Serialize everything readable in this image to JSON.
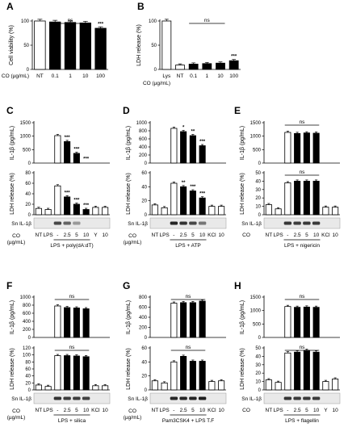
{
  "chart_data": [
    {
      "panel": "A",
      "type": "bar",
      "ylabel": "Cell viability (%)",
      "ylim": [
        0,
        100
      ],
      "yticks": [
        0,
        50,
        100
      ],
      "xaxis_label": "CO (µg/mL)",
      "categories": [
        "NT",
        "0.1",
        "1",
        "10",
        "100"
      ],
      "values": [
        100,
        98,
        97,
        96,
        85
      ],
      "stars": [
        "",
        "",
        "",
        "",
        "***"
      ],
      "ns_bracket": {
        "label": "ns",
        "from": 1,
        "to": 3
      }
    },
    {
      "panel": "B",
      "type": "bar",
      "ylabel": "LDH release (%)",
      "ylim": [
        0,
        100
      ],
      "yticks": [
        0,
        50,
        100
      ],
      "xaxis_label": "CO (µg/mL)",
      "categories": [
        "Lys",
        "NT",
        "0.1",
        "1",
        "10",
        "100"
      ],
      "values": [
        100,
        9,
        11,
        12,
        13,
        18
      ],
      "stars": [
        "",
        "",
        "",
        "",
        "",
        "***"
      ],
      "ns_bracket": {
        "label": "ns",
        "from": 2,
        "to": 4
      }
    },
    {
      "panel": "C",
      "top": {
        "type": "bar",
        "ylabel": "IL-1β (pg/mL)",
        "ylim": [
          0,
          1500
        ],
        "yticks": [
          0,
          500,
          1000,
          1500
        ],
        "values": [
          0,
          0,
          1020,
          800,
          360,
          0,
          0,
          0
        ],
        "stars": [
          "",
          "",
          "",
          "***",
          "***",
          "***",
          "",
          ""
        ]
      },
      "bottom": {
        "type": "bar",
        "ylabel": "LDH release (%)",
        "ylim": [
          0,
          80
        ],
        "yticks": [
          0,
          20,
          40,
          60,
          80
        ],
        "values": [
          12,
          10,
          55,
          34,
          20,
          10,
          14,
          14
        ],
        "stars": [
          "",
          "",
          "",
          "***",
          "***",
          "***",
          "",
          ""
        ]
      },
      "blot_label": "Sn IL-1β",
      "co_row": [
        "NT",
        "LPS",
        "-",
        "2.5",
        "5",
        "10",
        "Y",
        "10"
      ],
      "treatment": "LPS + poly(dA:dT)",
      "co_unit": [
        "CO",
        "(µg/mL)"
      ]
    },
    {
      "panel": "D",
      "top": {
        "type": "bar",
        "ylabel": "IL-1β (pg/mL)",
        "ylim": [
          0,
          1000
        ],
        "yticks": [
          0,
          200,
          400,
          600,
          800,
          1000
        ],
        "values": [
          0,
          0,
          860,
          780,
          680,
          430,
          0,
          0
        ],
        "stars": [
          "",
          "",
          "",
          "*",
          "**",
          "***",
          "",
          ""
        ]
      },
      "bottom": {
        "type": "bar",
        "ylabel": "LDH release (%)",
        "ylim": [
          0,
          60
        ],
        "yticks": [
          0,
          20,
          40,
          60
        ],
        "values": [
          14,
          10,
          45,
          40,
          34,
          24,
          12,
          12
        ],
        "stars": [
          "",
          "",
          "",
          "**",
          "***",
          "***",
          "",
          ""
        ]
      },
      "blot_label": "Sn IL-1β",
      "co_row": [
        "NT",
        "LPS",
        "-",
        "2.5",
        "5",
        "10",
        "KCl",
        "10"
      ],
      "treatment": "LPS + ATP",
      "co_unit": [
        "CO",
        "(µg/mL)"
      ]
    },
    {
      "panel": "E",
      "top": {
        "type": "bar",
        "ylabel": "IL-1β (pg/mL)",
        "ylim": [
          0,
          1500
        ],
        "yticks": [
          0,
          500,
          1000,
          1500
        ],
        "values": [
          0,
          0,
          1140,
          1100,
          1120,
          1110,
          0,
          0
        ],
        "stars": [
          "",
          "",
          "",
          "",
          "",
          "",
          "",
          ""
        ],
        "ns_bracket": {
          "label": "ns",
          "from": 2,
          "to": 5
        }
      },
      "bottom": {
        "type": "bar",
        "ylabel": "LDH release (%)",
        "ylim": [
          0,
          50
        ],
        "yticks": [
          0,
          10,
          20,
          30,
          40,
          50
        ],
        "values": [
          12,
          7,
          38,
          40,
          40,
          40,
          9,
          9
        ],
        "stars": [
          "",
          "",
          "",
          "",
          "",
          "",
          "",
          ""
        ],
        "ns_bracket": {
          "label": "ns",
          "from": 2,
          "to": 5
        }
      },
      "blot_label": "Sn IL-1β",
      "co_row": [
        "NT",
        "LPS",
        "-",
        "2.5",
        "5",
        "10",
        "KCl",
        "10"
      ],
      "treatment": "LPS + nigericin",
      "co_unit": [
        "CO"
      ]
    },
    {
      "panel": "F",
      "top": {
        "type": "bar",
        "ylabel": "IL-1β (pg/mL)",
        "ylim": [
          0,
          1000
        ],
        "yticks": [
          0,
          200,
          400,
          600,
          800,
          1000
        ],
        "values": [
          0,
          0,
          780,
          740,
          730,
          710,
          0,
          0
        ],
        "stars": [
          "",
          "",
          "",
          "",
          "",
          "",
          "",
          ""
        ],
        "ns_bracket": {
          "label": "ns",
          "from": 2,
          "to": 5
        }
      },
      "bottom": {
        "type": "bar",
        "ylabel": "LDH release (%)",
        "ylim": [
          0,
          120
        ],
        "yticks": [
          0,
          20,
          40,
          60,
          80,
          100,
          120
        ],
        "values": [
          14,
          10,
          98,
          98,
          97,
          95,
          12,
          12
        ],
        "stars": [
          "",
          "",
          "",
          "",
          "",
          "",
          "",
          ""
        ],
        "ns_bracket": {
          "label": "ns",
          "from": 2,
          "to": 5
        }
      },
      "blot_label": "Sn IL-1β",
      "co_row": [
        "NT",
        "LPS",
        "-",
        "2.5",
        "5",
        "10",
        "KCl",
        "10"
      ],
      "treatment": "LPS + silica",
      "co_unit": [
        "CO",
        "(µg/mL)"
      ]
    },
    {
      "panel": "G",
      "top": {
        "type": "bar",
        "ylabel": "IL-1β (pg/mL)",
        "ylim": [
          0,
          800
        ],
        "yticks": [
          0,
          200,
          400,
          600,
          800
        ],
        "values": [
          0,
          0,
          680,
          690,
          690,
          720,
          0,
          0
        ],
        "stars": [
          "",
          "",
          "",
          "",
          "",
          "",
          "",
          ""
        ],
        "ns_bracket": {
          "label": "ns",
          "from": 2,
          "to": 5
        }
      },
      "bottom": {
        "type": "bar",
        "ylabel": "LDH release (%)",
        "ylim": [
          0,
          60
        ],
        "yticks": [
          0,
          20,
          40,
          60
        ],
        "values": [
          13,
          10,
          40,
          48,
          41,
          41,
          12,
          13
        ],
        "stars": [
          "",
          "",
          "",
          "",
          "",
          "",
          "",
          ""
        ],
        "ns_bracket": {
          "label": "ns",
          "from": 2,
          "to": 5
        }
      },
      "blot_label": "Sn IL-1β",
      "co_row": [
        "NT",
        "LPS",
        "-",
        "2.5",
        "5",
        "10",
        "KCl",
        "10"
      ],
      "treatment": "Pam3CSK4 + LPS T.F",
      "co_unit": [
        "CO",
        "(µg/mL)"
      ]
    },
    {
      "panel": "H",
      "top": {
        "type": "bar",
        "ylabel": "IL-1β (pg/mL)",
        "ylim": [
          0,
          1500
        ],
        "yticks": [
          0,
          500,
          1000,
          1500
        ],
        "values": [
          0,
          0,
          1150,
          1120,
          1130,
          1120,
          0,
          0
        ],
        "stars": [
          "",
          "",
          "",
          "",
          "",
          "",
          "",
          ""
        ],
        "ns_bracket": {
          "label": "ns",
          "from": 2,
          "to": 5
        }
      },
      "bottom": {
        "type": "bar",
        "ylabel": "LDH release (%)",
        "ylim": [
          0,
          50
        ],
        "yticks": [
          0,
          10,
          20,
          30,
          40,
          50
        ],
        "values": [
          12,
          9,
          44,
          45,
          47,
          45,
          10,
          13
        ],
        "stars": [
          "",
          "",
          "",
          "",
          "",
          "",
          "",
          ""
        ],
        "ns_bracket": {
          "label": "ns",
          "from": 2,
          "to": 5
        }
      },
      "blot_label": "Sn IL-1β",
      "co_row": [
        "NT",
        "LPS",
        "-",
        "2.5",
        "5",
        "10",
        "Y",
        "10"
      ],
      "treatment": "LPS + flagellin",
      "co_unit": [
        "CO"
      ]
    }
  ]
}
